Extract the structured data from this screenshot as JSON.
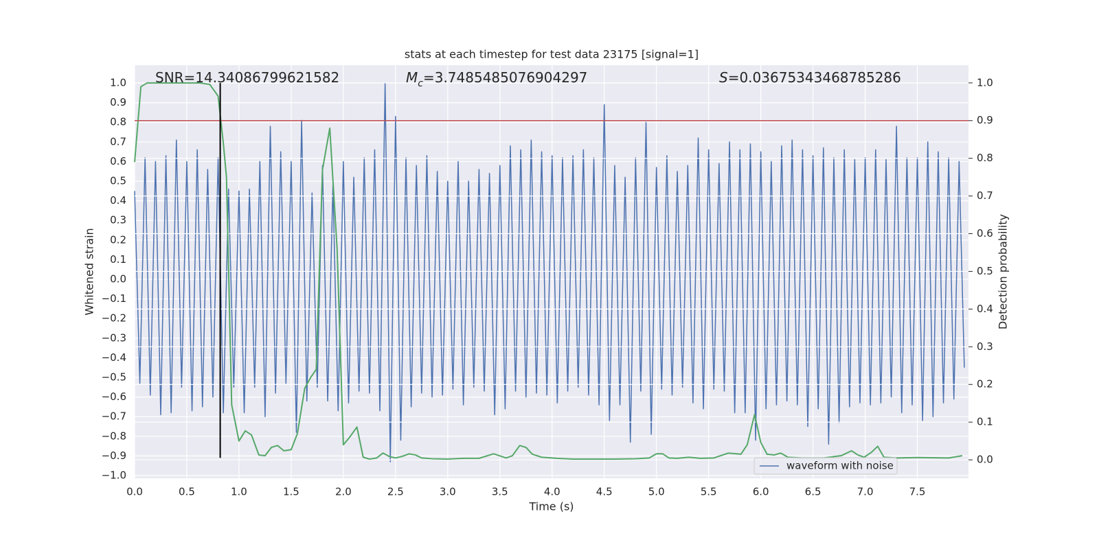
{
  "chart_data": {
    "type": "line",
    "title": "stats at each timestep for test data 23175 [signal=1]",
    "xlabel": "Time (s)",
    "ylabel": "Whitened strain",
    "y2label": "Detection probability",
    "annotations": [
      {
        "text": "SNR=14.34086799621582"
      },
      {
        "symbol": "M",
        "sub": "c",
        "text": "=3.7485485076904297"
      },
      {
        "symbol": "S",
        "text": "=0.03675343468785286"
      }
    ],
    "xlim": [
      0,
      7.99
    ],
    "ylim": [
      -1.014,
      1.091
    ],
    "y2lim": [
      -0.049,
      1.047
    ],
    "grid": true,
    "legend": "lower right",
    "xticks": [
      {
        "value": 0,
        "label": "0.0"
      },
      {
        "value": 0.5,
        "label": "0.5"
      },
      {
        "value": 1,
        "label": "1.0"
      },
      {
        "value": 1.5,
        "label": "1.5"
      },
      {
        "value": 2,
        "label": "2.0"
      },
      {
        "value": 2.5,
        "label": "2.5"
      },
      {
        "value": 3,
        "label": "3.0"
      },
      {
        "value": 3.5,
        "label": "3.5"
      },
      {
        "value": 4,
        "label": "4.0"
      },
      {
        "value": 4.5,
        "label": "4.5"
      },
      {
        "value": 5,
        "label": "5.0"
      },
      {
        "value": 5.5,
        "label": "5.5"
      },
      {
        "value": 6,
        "label": "6.0"
      },
      {
        "value": 6.5,
        "label": "6.5"
      },
      {
        "value": 7,
        "label": "7.0"
      },
      {
        "value": 7.5,
        "label": "7.5"
      }
    ],
    "yticks": [
      {
        "value": -1,
        "label": "−1.0"
      },
      {
        "value": -0.9,
        "label": "−0.9"
      },
      {
        "value": -0.8,
        "label": "−0.8"
      },
      {
        "value": -0.7,
        "label": "−0.7"
      },
      {
        "value": -0.6,
        "label": "−0.6"
      },
      {
        "value": -0.5,
        "label": "−0.5"
      },
      {
        "value": -0.4,
        "label": "−0.4"
      },
      {
        "value": -0.3,
        "label": "−0.3"
      },
      {
        "value": -0.2,
        "label": "−0.2"
      },
      {
        "value": -0.1,
        "label": "−0.1"
      },
      {
        "value": 0,
        "label": "0.0"
      },
      {
        "value": 0.1,
        "label": "0.1"
      },
      {
        "value": 0.2,
        "label": "0.2"
      },
      {
        "value": 0.3,
        "label": "0.3"
      },
      {
        "value": 0.4,
        "label": "0.4"
      },
      {
        "value": 0.5,
        "label": "0.5"
      },
      {
        "value": 0.6,
        "label": "0.6"
      },
      {
        "value": 0.7,
        "label": "0.7"
      },
      {
        "value": 0.8,
        "label": "0.8"
      },
      {
        "value": 0.9,
        "label": "0.9"
      },
      {
        "value": 1,
        "label": "1.0"
      }
    ],
    "y2ticks": [
      {
        "value": 0,
        "label": "0.0"
      },
      {
        "value": 0.1,
        "label": "0.1"
      },
      {
        "value": 0.2,
        "label": "0.2"
      },
      {
        "value": 0.3,
        "label": "0.3"
      },
      {
        "value": 0.4,
        "label": "0.4"
      },
      {
        "value": 0.5,
        "label": "0.5"
      },
      {
        "value": 0.6,
        "label": "0.6"
      },
      {
        "value": 0.7,
        "label": "0.7"
      },
      {
        "value": 0.8,
        "label": "0.8"
      },
      {
        "value": 0.9,
        "label": "0.9"
      },
      {
        "value": 1,
        "label": "1.0"
      }
    ],
    "hline": {
      "y": 0.9,
      "axis": "y2",
      "color": "#c44e52"
    },
    "vline": {
      "x": 0.82,
      "ymin": -0.91,
      "ymax": 1.0,
      "color": "#000000"
    },
    "series": [
      {
        "name": "waveform with noise",
        "color": "#4c72b0",
        "x": [
          0,
          0.05,
          0.1,
          0.15,
          0.2,
          0.25,
          0.3,
          0.35,
          0.4,
          0.45,
          0.5,
          0.55,
          0.6,
          0.65,
          0.7,
          0.75,
          0.8,
          0.85,
          0.9,
          0.95,
          1,
          1.05,
          1.1,
          1.15,
          1.2,
          1.25,
          1.3,
          1.35,
          1.4,
          1.45,
          1.5,
          1.55,
          1.6,
          1.65,
          1.7,
          1.75,
          1.8,
          1.85,
          1.9,
          1.95,
          2,
          2.05,
          2.1,
          2.15,
          2.2,
          2.25,
          2.3,
          2.35,
          2.4,
          2.45,
          2.5,
          2.55,
          2.6,
          2.65,
          2.7,
          2.75,
          2.8,
          2.85,
          2.9,
          2.95,
          3,
          3.05,
          3.1,
          3.15,
          3.2,
          3.25,
          3.3,
          3.35,
          3.4,
          3.45,
          3.5,
          3.55,
          3.6,
          3.65,
          3.7,
          3.75,
          3.8,
          3.85,
          3.9,
          3.95,
          4,
          4.05,
          4.1,
          4.15,
          4.2,
          4.25,
          4.3,
          4.35,
          4.4,
          4.45,
          4.5,
          4.55,
          4.6,
          4.65,
          4.7,
          4.75,
          4.8,
          4.85,
          4.9,
          4.95,
          5,
          5.05,
          5.1,
          5.15,
          5.2,
          5.25,
          5.3,
          5.35,
          5.4,
          5.45,
          5.5,
          5.55,
          5.6,
          5.65,
          5.7,
          5.75,
          5.8,
          5.85,
          5.9,
          5.95,
          6,
          6.05,
          6.1,
          6.15,
          6.2,
          6.25,
          6.3,
          6.35,
          6.4,
          6.45,
          6.5,
          6.55,
          6.6,
          6.65,
          6.7,
          6.75,
          6.8,
          6.85,
          6.9,
          6.95,
          7,
          7.05,
          7.1,
          7.15,
          7.2,
          7.25,
          7.3,
          7.35,
          7.4,
          7.45,
          7.5,
          7.55,
          7.6,
          7.65,
          7.7,
          7.75,
          7.8,
          7.85,
          7.9,
          7.95
        ],
        "values": [
          0.45,
          -0.53,
          0.62,
          -0.59,
          0.6,
          -0.69,
          0.63,
          -0.68,
          0.71,
          -0.55,
          0.6,
          -0.67,
          0.66,
          -0.65,
          0.56,
          -0.6,
          0.62,
          -0.68,
          0.46,
          -0.55,
          0.45,
          -0.68,
          0.46,
          -0.55,
          0.6,
          -0.7,
          0.78,
          -0.58,
          0.65,
          -0.53,
          0.6,
          -0.78,
          0.81,
          -0.62,
          0.44,
          -0.55,
          0.58,
          -0.62,
          0.48,
          -0.67,
          0.6,
          -0.63,
          0.52,
          -0.57,
          0.62,
          -0.58,
          0.66,
          -0.67,
          1.0,
          -0.93,
          0.83,
          -0.82,
          0.62,
          -0.65,
          0.58,
          -0.58,
          0.63,
          -0.6,
          0.55,
          -0.59,
          0.5,
          -0.56,
          0.6,
          -0.64,
          0.5,
          -0.55,
          0.56,
          -0.57,
          0.54,
          -0.69,
          0.58,
          -0.66,
          0.68,
          -0.57,
          0.66,
          -0.6,
          0.71,
          -0.58,
          0.65,
          -0.59,
          0.63,
          -0.63,
          0.62,
          -0.57,
          0.63,
          -0.55,
          0.66,
          -0.59,
          0.62,
          -0.64,
          0.89,
          -0.72,
          0.58,
          -0.64,
          0.52,
          -0.83,
          0.62,
          -0.57,
          0.8,
          -0.79,
          0.57,
          -0.56,
          0.63,
          -0.59,
          0.55,
          -0.55,
          0.58,
          -0.63,
          0.72,
          -0.66,
          0.66,
          -0.56,
          0.59,
          -0.57,
          0.7,
          -0.68,
          0.66,
          -0.68,
          0.69,
          -0.82,
          0.65,
          -0.66,
          0.6,
          -0.64,
          0.68,
          -0.62,
          0.71,
          -0.64,
          0.66,
          -0.75,
          0.63,
          -0.66,
          0.67,
          -0.84,
          0.62,
          -0.73,
          0.66,
          -0.65,
          0.61,
          -0.63,
          0.62,
          -0.64,
          0.66,
          -0.63,
          0.61,
          -0.6,
          0.78,
          -0.68,
          0.62,
          -0.64,
          0.62,
          -0.72,
          0.7,
          -0.7,
          0.65,
          -0.63,
          0.62,
          -0.61,
          0.6,
          -0.45
        ]
      },
      {
        "color": "#55a868",
        "axis": "y2",
        "x": [
          0,
          0.06,
          0.12,
          0.25,
          0.4,
          0.55,
          0.62,
          0.72,
          0.8,
          0.85,
          0.88,
          0.93,
          1.0,
          1.06,
          1.12,
          1.19,
          1.25,
          1.31,
          1.37,
          1.43,
          1.5,
          1.56,
          1.63,
          1.69,
          1.74,
          1.8,
          1.87,
          1.94,
          2.0,
          2.06,
          2.13,
          2.19,
          2.25,
          2.32,
          2.38,
          2.44,
          2.5,
          2.56,
          2.63,
          2.69,
          2.75,
          2.85,
          3.0,
          3.15,
          3.3,
          3.44,
          3.56,
          3.62,
          3.69,
          3.75,
          3.81,
          3.9,
          4.05,
          4.2,
          4.4,
          4.6,
          4.8,
          4.93,
          5.0,
          5.06,
          5.12,
          5.2,
          5.31,
          5.42,
          5.55,
          5.69,
          5.81,
          5.87,
          5.94,
          6.0,
          6.06,
          6.13,
          6.19,
          6.26,
          6.4,
          6.6,
          6.77,
          6.87,
          6.93,
          6.99,
          7.06,
          7.12,
          7.18,
          7.3,
          7.5,
          7.8,
          7.93
        ],
        "values": [
          0.79,
          0.99,
          1.0,
          1.0,
          1.0,
          1.0,
          1.0,
          0.996,
          0.965,
          0.84,
          0.75,
          0.146,
          0.05,
          0.077,
          0.066,
          0.013,
          0.011,
          0.033,
          0.038,
          0.024,
          0.027,
          0.07,
          0.19,
          0.22,
          0.24,
          0.77,
          0.88,
          0.56,
          0.04,
          0.06,
          0.087,
          0.007,
          0.002,
          0.005,
          0.018,
          0.009,
          0.005,
          0.009,
          0.016,
          0.013,
          0.005,
          0.003,
          0.002,
          0.004,
          0.004,
          0.016,
          0.005,
          0.011,
          0.038,
          0.033,
          0.015,
          0.007,
          0.004,
          0.002,
          0.002,
          0.002,
          0.003,
          0.005,
          0.016,
          0.016,
          0.005,
          0.004,
          0.007,
          0.004,
          0.005,
          0.018,
          0.015,
          0.04,
          0.12,
          0.046,
          0.015,
          0.013,
          0.018,
          0.007,
          0.005,
          0.005,
          0.011,
          0.024,
          0.013,
          0.007,
          0.02,
          0.036,
          0.007,
          0.005,
          0.006,
          0.005,
          0.011
        ]
      }
    ]
  }
}
